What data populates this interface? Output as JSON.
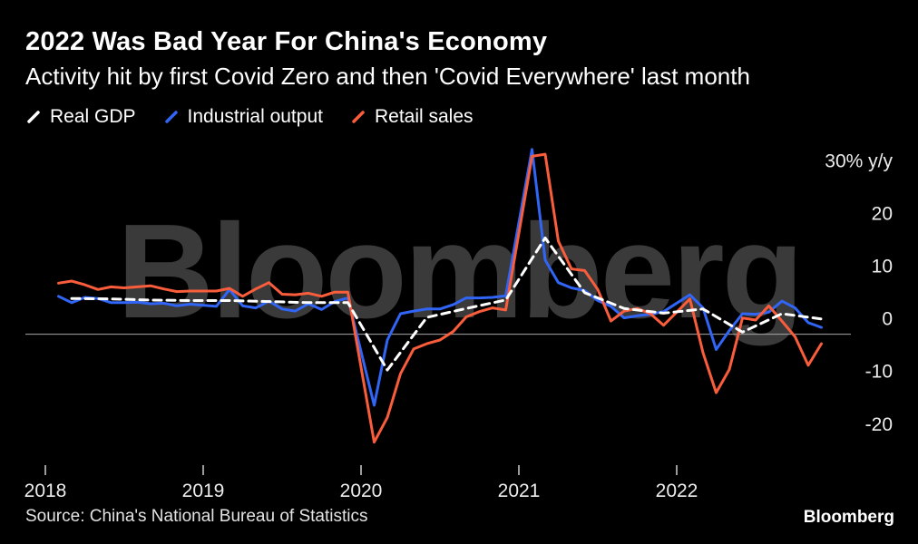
{
  "header": {
    "title": "2022 Was Bad Year For China's Economy",
    "subtitle": "Activity hit by first Covid Zero and then 'Covid Everywhere' last month"
  },
  "watermark": "Bloomberg",
  "footer": {
    "source": "Source: China's National Bureau of Statistics",
    "logo": "Bloomberg"
  },
  "colors": {
    "background": "#000000",
    "text": "#ffffff",
    "axis_text": "#ececec",
    "zero_line": "#a8a8a8",
    "tick": "#9b9b9b",
    "watermark": "#3a3a3a"
  },
  "chart_data": {
    "type": "line",
    "title": "2022 Was Bad Year For China's Economy",
    "subtitle": "Activity hit by first Covid Zero and then 'Covid Everywhere' last month",
    "xlabel": "",
    "ylabel": "% y/y",
    "ylim": [
      -24,
      38
    ],
    "grid": false,
    "zero_line": true,
    "legend_position": "top-left",
    "y_ticks": [
      30,
      20,
      10,
      0,
      -10,
      -20
    ],
    "y_tick_labels": [
      "30% y/y",
      "20",
      "10",
      "0",
      "-10",
      "-20"
    ],
    "x_tick_labels": [
      "2018",
      "2019",
      "2020",
      "2021",
      "2022"
    ],
    "x_unit": "months from Jan 2018",
    "series": [
      {
        "name": "Real GDP",
        "color": "#ffffff",
        "style": "dashed",
        "x": [
          2,
          5,
          8,
          11,
          14,
          17,
          20,
          23,
          26,
          29,
          32,
          35,
          38,
          41,
          44,
          47,
          50,
          53,
          56,
          59
        ],
        "values": [
          6.8,
          6.7,
          6.5,
          6.4,
          6.4,
          6.2,
          6.0,
          6.0,
          -6.8,
          3.2,
          4.9,
          6.5,
          18.3,
          7.9,
          4.9,
          4.0,
          4.8,
          0.4,
          3.9,
          2.9
        ]
      },
      {
        "name": "Industrial output",
        "color": "#3165f5",
        "style": "solid",
        "x": [
          1,
          2,
          3,
          4,
          5,
          6,
          7,
          8,
          9,
          10,
          11,
          13,
          14,
          15,
          16,
          17,
          18,
          19,
          20,
          21,
          22,
          23,
          25,
          26,
          27,
          28,
          29,
          30,
          31,
          32,
          33,
          34,
          35,
          37,
          38,
          39,
          40,
          41,
          42,
          43,
          44,
          45,
          46,
          47,
          49,
          50,
          51,
          52,
          53,
          54,
          55,
          56,
          57,
          58,
          59
        ],
        "values": [
          7.2,
          6.0,
          7.0,
          6.8,
          6.0,
          6.0,
          6.1,
          5.8,
          5.9,
          5.4,
          5.7,
          5.3,
          8.5,
          5.4,
          5.0,
          6.3,
          4.8,
          4.4,
          5.8,
          4.7,
          6.2,
          6.9,
          -13.5,
          -1.1,
          3.9,
          4.4,
          4.8,
          4.8,
          5.6,
          6.9,
          6.9,
          7.0,
          7.3,
          35.1,
          14.1,
          9.8,
          8.8,
          8.3,
          6.4,
          5.3,
          3.1,
          3.5,
          3.8,
          4.3,
          7.5,
          5.0,
          -2.9,
          0.7,
          3.9,
          3.8,
          4.2,
          6.3,
          5.0,
          2.2,
          1.3
        ]
      },
      {
        "name": "Retail sales",
        "color": "#f95d3b",
        "style": "solid",
        "x": [
          1,
          2,
          3,
          4,
          5,
          6,
          7,
          8,
          9,
          10,
          11,
          13,
          14,
          15,
          16,
          17,
          18,
          19,
          20,
          21,
          22,
          23,
          25,
          26,
          27,
          28,
          29,
          30,
          31,
          32,
          33,
          34,
          35,
          37,
          38,
          39,
          40,
          41,
          42,
          43,
          44,
          45,
          46,
          47,
          49,
          50,
          51,
          52,
          53,
          54,
          55,
          56,
          57,
          58,
          59
        ],
        "values": [
          9.7,
          10.1,
          9.4,
          8.5,
          9.0,
          8.8,
          9.0,
          9.2,
          8.6,
          8.1,
          8.2,
          8.2,
          8.7,
          7.2,
          8.6,
          9.8,
          7.6,
          7.5,
          7.8,
          7.2,
          8.0,
          8.0,
          -20.5,
          -15.8,
          -7.5,
          -2.8,
          -1.8,
          -1.1,
          0.5,
          3.3,
          4.3,
          5.0,
          4.6,
          33.8,
          34.2,
          17.7,
          12.4,
          12.1,
          8.5,
          2.5,
          4.4,
          4.9,
          3.9,
          1.7,
          6.7,
          -3.5,
          -11.1,
          -6.7,
          3.1,
          2.7,
          5.4,
          2.5,
          -0.5,
          -5.9,
          -1.8
        ]
      }
    ]
  }
}
